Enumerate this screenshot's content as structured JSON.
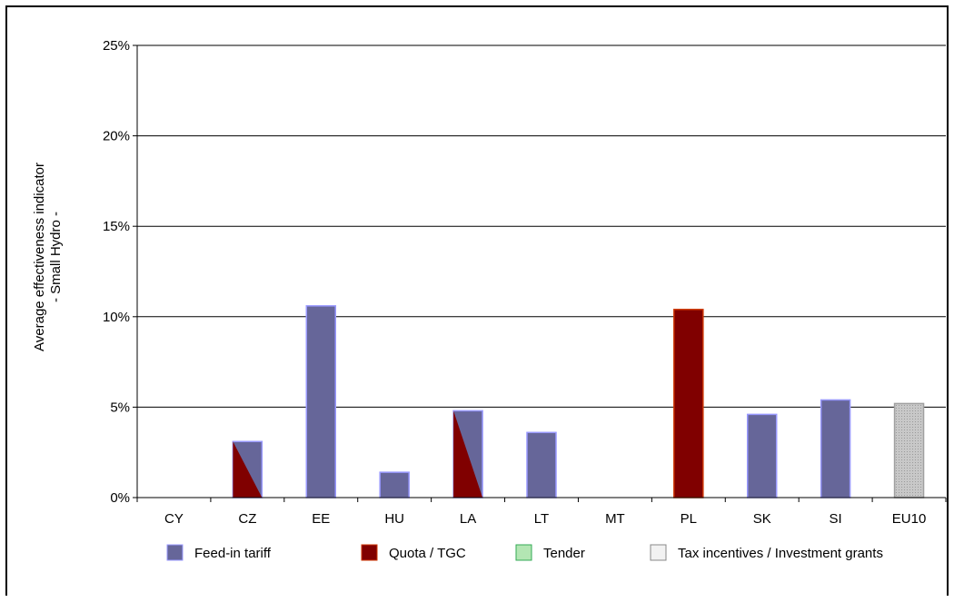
{
  "chart_data": {
    "type": "bar",
    "title": "",
    "xlabel": "",
    "ylabel": "Average effectiveness indicator",
    "ylabel_line2": "- Small Hydro -",
    "ylim": [
      0,
      25
    ],
    "yticks": [
      0,
      5,
      10,
      15,
      20,
      25
    ],
    "ytick_labels": [
      "0%",
      "5%",
      "10%",
      "15%",
      "20%",
      "25%"
    ],
    "grid": "horizontal",
    "legend_position": "bottom",
    "categories": [
      "CY",
      "CZ",
      "EE",
      "HU",
      "LA",
      "LT",
      "MT",
      "PL",
      "SK",
      "SI",
      "EU10"
    ],
    "values": [
      0,
      3.1,
      10.6,
      1.4,
      4.8,
      3.6,
      0,
      10.4,
      4.6,
      5.4,
      5.2
    ],
    "bar_instrument": [
      "none",
      "fit+quota",
      "fit",
      "fit",
      "fit+quota",
      "fit",
      "none",
      "quota",
      "fit",
      "fit",
      "tax"
    ],
    "legend": [
      {
        "key": "fit",
        "label": "Feed-in tariff",
        "color": "#666699",
        "border": "#9999ff"
      },
      {
        "key": "quota",
        "label": "Quota / TGC",
        "color": "#800000",
        "border": "#cc3300"
      },
      {
        "key": "tender",
        "label": "Tender",
        "color": "#b3e6b3",
        "border": "#33aa55"
      },
      {
        "key": "tax",
        "label": "Tax incentives / Investment grants",
        "color": "#f2f2f2",
        "border": "#888888"
      }
    ]
  }
}
